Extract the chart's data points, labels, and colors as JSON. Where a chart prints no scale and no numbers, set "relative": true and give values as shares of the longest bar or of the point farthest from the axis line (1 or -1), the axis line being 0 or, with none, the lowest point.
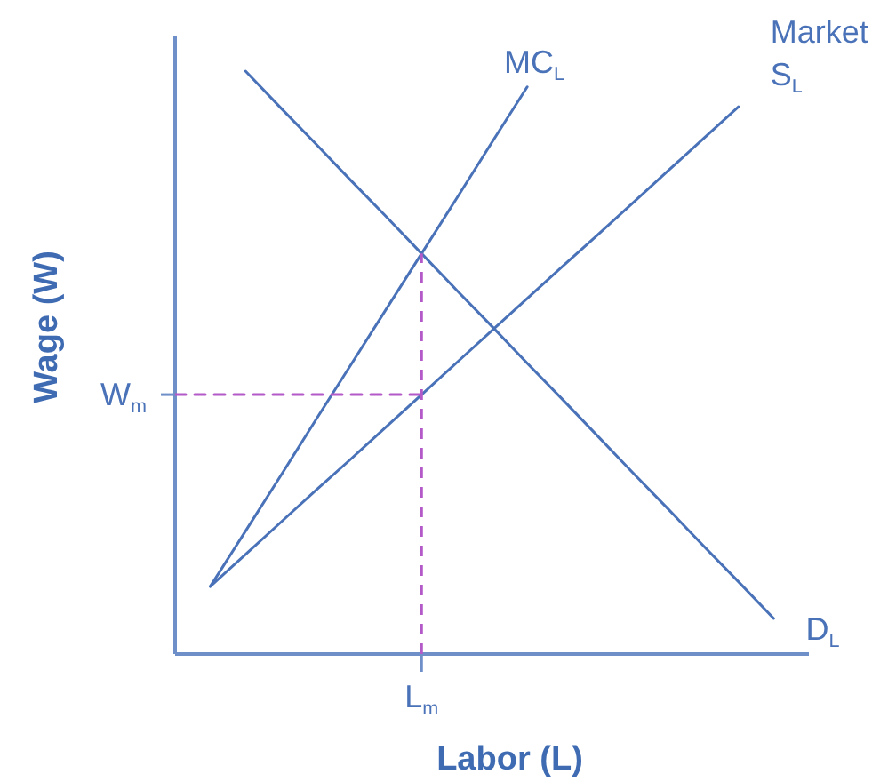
{
  "chart_data": {
    "type": "line",
    "relative": true,
    "xlabel": "Labor (L)",
    "ylabel": "Wage (W)",
    "legend": false,
    "line_style": "solid",
    "marker": "none",
    "categories": [
      null,
      null,
      null,
      null,
      null,
      null,
      null,
      null,
      null,
      null,
      null,
      null,
      null,
      null,
      null,
      null,
      null,
      null,
      null
    ],
    "series": [
      {
        "name": "MC$_{L}$",
        "color": "#4a72b8",
        "values": [
          null,
          0.116,
          0.211,
          0.306,
          0.402,
          0.497,
          0.592,
          0.687,
          0.782,
          0.878,
          0.973,
          null,
          null,
          null,
          null,
          null,
          null,
          null,
          null
        ]
      },
      {
        "name": "Market S$_{L}$",
        "color": "#4a72b8",
        "values": [
          null,
          0.116,
          0.171,
          0.226,
          0.281,
          0.335,
          0.39,
          0.445,
          0.5,
          0.555,
          0.61,
          0.665,
          0.719,
          0.774,
          0.829,
          0.884,
          0.939,
          null,
          null
        ]
      },
      {
        "name": "D$_{L}$",
        "color": "#4a72b8",
        "values": [
          null,
          null,
          1,
          0.937,
          0.875,
          0.812,
          0.75,
          0.687,
          0.624,
          0.562,
          0.499,
          0.437,
          0.374,
          0.311,
          0.249,
          0.186,
          0.124,
          0.061,
          null
        ]
      },
      {
        "color": "#b459c8",
        "line_style": "dashed",
        "values": [
          0.445,
          0.445,
          0.445,
          0.445,
          0.445,
          0.445,
          0.445,
          0.445,
          null,
          null,
          null,
          null,
          null,
          null,
          null,
          null,
          null,
          null,
          null
        ]
      }
    ],
    "annotations": [
      "W$_{m}$",
      "L$_{m}$"
    ]
  }
}
